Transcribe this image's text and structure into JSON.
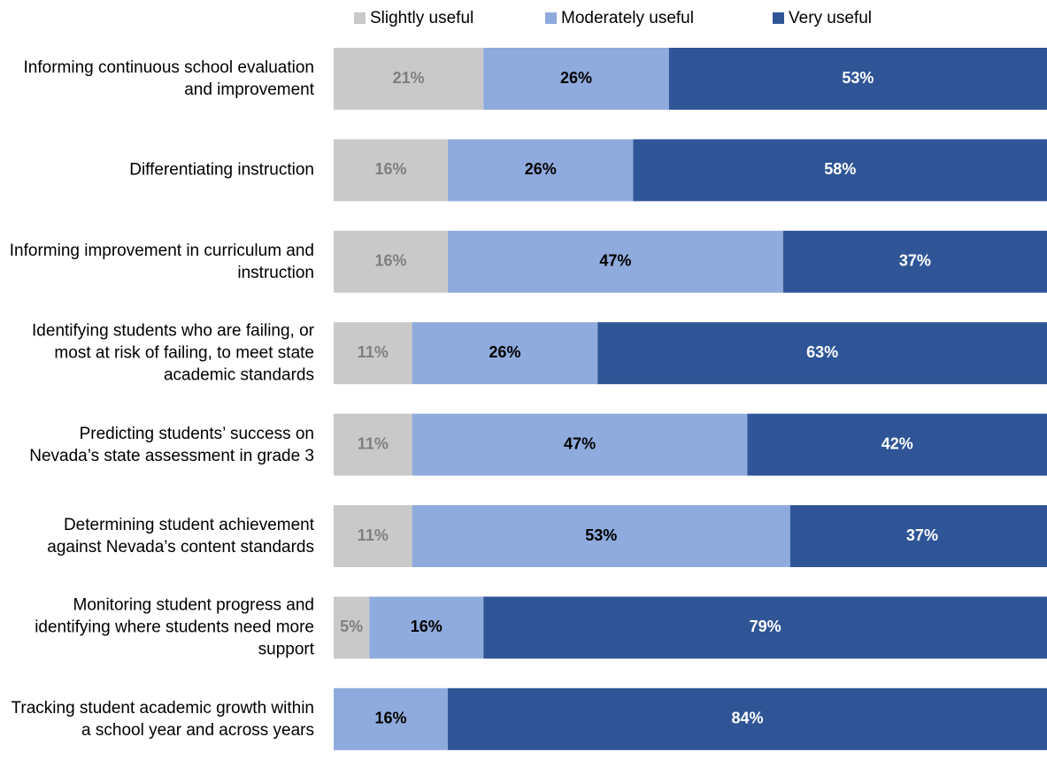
{
  "chart_data": {
    "type": "stacked-bar-horizontal",
    "categories": [
      "Informing continuous school evaluation and improvement",
      "Differentiating instruction",
      "Informing improvement in curriculum and instruction",
      "Identifying students who are failing, or most at risk of failing, to meet state academic standards",
      "Predicting students’ success on Nevada’s state assessment in grade 3",
      "Determining student achievement against Nevada’s content standards",
      "Monitoring student progress and identifying where students need more support",
      "Tracking student academic growth within a school year and across years"
    ],
    "xlim": [
      0,
      100
    ],
    "legend": "top",
    "series": [
      {
        "name": "Slightly useful",
        "color": "#c9c9c9",
        "label_color": "#7f7f7f",
        "values": [
          21,
          16,
          16,
          11,
          11,
          11,
          5,
          0
        ],
        "value_labels": [
          "21%",
          "16%",
          "16%",
          "11%",
          "11%",
          "11%",
          "5%",
          null
        ]
      },
      {
        "name": "Moderately useful",
        "color": "#8faadc",
        "label_color": "#000000",
        "values": [
          26,
          26,
          47,
          26,
          47,
          53,
          16,
          16
        ],
        "value_labels": [
          "26%",
          "26%",
          "47%",
          "26%",
          "47%",
          "53%",
          "16%",
          "16%"
        ]
      },
      {
        "name": "Very useful",
        "color": "#2f5597",
        "label_color": "#ffffff",
        "values": [
          53,
          58,
          37,
          63,
          42,
          37,
          79,
          84
        ],
        "value_labels": [
          "53%",
          "58%",
          "37%",
          "63%",
          "42%",
          "37%",
          "79%",
          "84%"
        ]
      }
    ]
  }
}
